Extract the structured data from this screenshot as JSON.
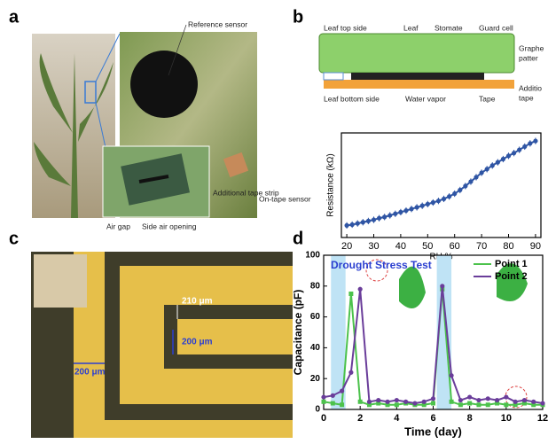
{
  "panels": {
    "labels": [
      "a",
      "b",
      "c",
      "d"
    ]
  },
  "panel_a": {
    "annotations": [
      "Reference sensor",
      "On-tape sensor",
      "Additional tape strip",
      "Air gap",
      "Side air opening"
    ]
  },
  "panel_b": {
    "diagram_labels": [
      "Leaf top side",
      "Leaf",
      "Stomate",
      "Guard cell",
      "Graphe",
      "patter",
      "Leaf bottom side",
      "Water vapor",
      "Tape",
      "Additio",
      "tape"
    ]
  },
  "panel_c": {
    "scale_labels": [
      "200 μm",
      "210 μm",
      "200 μm"
    ]
  },
  "chart_data": [
    {
      "type": "line",
      "xlabel": "RH %",
      "ylabel": "Resistance (kΩ)",
      "color": "#2f55a4",
      "marker": "circle",
      "x": [
        20,
        22,
        24,
        26,
        28,
        30,
        32,
        34,
        36,
        38,
        40,
        42,
        44,
        46,
        48,
        50,
        52,
        54,
        56,
        58,
        60,
        62,
        64,
        66,
        68,
        70,
        72,
        74,
        76,
        78,
        80,
        82,
        84,
        86,
        88,
        90
      ],
      "values": [
        10,
        10.2,
        10.5,
        10.8,
        11.1,
        11.4,
        11.8,
        12.1,
        12.5,
        12.9,
        13.3,
        13.7,
        14.1,
        14.5,
        14.9,
        15.3,
        15.7,
        16.1,
        16.6,
        17.2,
        17.9,
        18.8,
        19.8,
        20.9,
        22,
        23.1,
        24,
        24.9,
        25.7,
        26.5,
        27.3,
        28,
        28.8,
        29.6,
        30.4,
        31
      ],
      "errors": [
        0.8,
        0.8,
        0.8,
        0.8,
        0.8,
        0.8,
        0.8,
        0.8,
        0.8,
        0.8,
        0.8,
        0.8,
        0.8,
        0.8,
        0.8,
        0.8,
        0.8,
        0.8,
        0.8,
        0.8,
        0.8,
        0.8,
        0.8,
        0.8,
        0.8,
        0.8,
        0.8,
        0.8,
        0.8,
        0.8,
        0.8,
        0.8,
        0.8,
        0.8,
        0.8,
        0.8
      ],
      "xlim": [
        18,
        92
      ],
      "xticks": [
        20,
        30,
        40,
        50,
        60,
        70,
        80,
        90
      ],
      "ylim": [
        7,
        33
      ]
    },
    {
      "type": "line",
      "xlabel": "Time (day)",
      "ylabel": "Capacitance (pF)",
      "annotation": "Drought Stress Test",
      "legend": "upper right",
      "shaded_ranges": [
        [
          0.4,
          1.2
        ],
        [
          6.2,
          7.0
        ]
      ],
      "x": [
        0,
        0.5,
        1,
        1.5,
        2,
        2.5,
        3,
        3.5,
        4,
        4.5,
        5,
        5.5,
        6,
        6.5,
        7,
        7.5,
        8,
        8.5,
        9,
        9.5,
        10,
        10.5,
        11,
        11.5,
        12
      ],
      "series": [
        {
          "name": "Point 1",
          "color": "#4cc24c",
          "marker": "square",
          "values": [
            5,
            4,
            3,
            75,
            5,
            3,
            4,
            3,
            3,
            4,
            3,
            3,
            4,
            78,
            5,
            3,
            4,
            3,
            3,
            4,
            3,
            3,
            4,
            3,
            3
          ]
        },
        {
          "name": "Point 2",
          "color": "#6a3d9a",
          "marker": "circle",
          "values": [
            8,
            9,
            12,
            24,
            78,
            5,
            6,
            5,
            6,
            5,
            4,
            5,
            7,
            80,
            22,
            6,
            8,
            6,
            7,
            6,
            8,
            5,
            6,
            5,
            4
          ]
        }
      ],
      "xlim": [
        0,
        12
      ],
      "xticks": [
        0,
        2,
        4,
        6,
        8,
        10,
        12
      ],
      "ylim": [
        0,
        100
      ],
      "yticks": [
        0,
        20,
        40,
        60,
        80,
        100
      ]
    }
  ]
}
